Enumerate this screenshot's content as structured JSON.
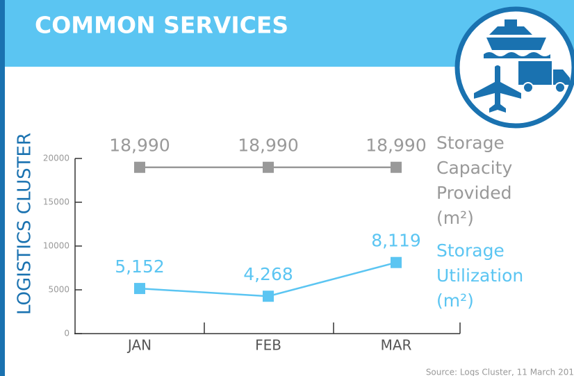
{
  "chart_data": {
    "type": "line",
    "title": "COMMON SERVICES",
    "y_label": "LOGISTICS CLUSTER",
    "source": "Source:  Logs Cluster, 11 March 201",
    "categories": [
      "JAN",
      "FEB",
      "MAR"
    ],
    "series": [
      {
        "name": "Storage Capacity Provided (m²)",
        "color": "#999999",
        "values": [
          18990,
          18990,
          18990
        ],
        "value_labels": [
          "18,990",
          "18,990",
          "18,990"
        ]
      },
      {
        "name": "Storage Utilization (m²)",
        "color": "#5bc5f2",
        "values": [
          5152,
          4268,
          8119
        ],
        "value_labels": [
          "5,152",
          "4,268",
          "8,119"
        ]
      }
    ],
    "ylim": [
      0,
      20000
    ],
    "yticks": [
      0,
      5000,
      10000,
      15000,
      20000
    ],
    "grid": false
  }
}
